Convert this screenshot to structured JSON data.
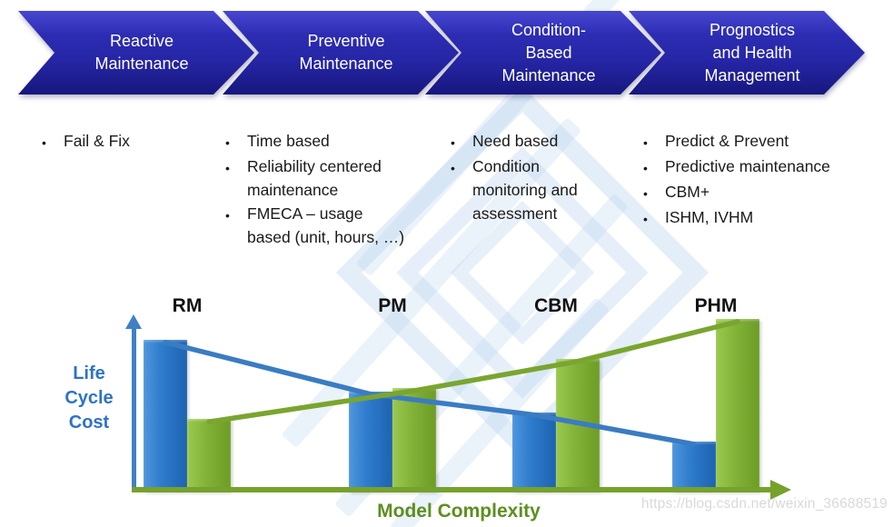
{
  "ui": {
    "bullet": "•"
  },
  "banner": {
    "stages": [
      {
        "label": "Reactive\nMaintenance"
      },
      {
        "label": "Preventive\nMaintenance"
      },
      {
        "label": "Condition-\nBased\nMaintenance"
      },
      {
        "label": "Prognostics\nand Health\nManagement"
      }
    ]
  },
  "columns": [
    {
      "items": [
        "Fail & Fix"
      ]
    },
    {
      "items": [
        "Time based",
        "Reliability centered\nmaintenance",
        "FMECA – usage\nbased (unit, hours, …)"
      ]
    },
    {
      "items": [
        "Need based",
        "Condition\nmonitoring and\nassessment"
      ]
    },
    {
      "items": [
        "Predict & Prevent",
        "Predictive maintenance",
        "CBM+",
        "ISHM, IVHM"
      ]
    }
  ],
  "chart_data": {
    "type": "bar",
    "categories": [
      "RM",
      "PM",
      "CBM",
      "PHM"
    ],
    "series": [
      {
        "name": "blue-cost-bars",
        "color_key": "bar_blue",
        "values": [
          88,
          58,
          46,
          29
        ]
      },
      {
        "name": "green-complexity-bars",
        "color_key": "bar_green",
        "values": [
          42,
          60,
          77,
          100
        ]
      }
    ],
    "trend_lines": [
      {
        "name": "blue-declining-trend",
        "follows_series": 0
      },
      {
        "name": "green-rising-trend",
        "follows_series": 1
      }
    ],
    "ylabel": "Life\nCycle\nCost",
    "xlabel": "Model Complexity",
    "ylim": [
      0,
      100
    ],
    "units": "relative bar height, % of tallest bar (estimated from pixels)",
    "grid": false,
    "legend": "none"
  },
  "watermark": {
    "url_text": "https://blog.csdn.net/weixin_36688519"
  },
  "colors": {
    "chevron_blue_top": "#4646cf",
    "chevron_blue_bottom": "#17177e",
    "chevron_text": "#ffffff",
    "bar_blue": "#2a76c8",
    "bar_green": "#7cae31",
    "line_blue": "#3a7cc2",
    "line_green": "#7aa52f",
    "axis_blue": "#3f80c6",
    "axis_green": "#76a12d",
    "ylabel_text": "#2e74c4",
    "xlabel_text": "#5e8e1e",
    "category_label_text": "#111111",
    "body_text": "#1a1a1a",
    "logo_watermark": "#dce9f5",
    "url_watermark": "#d9d9d9"
  }
}
